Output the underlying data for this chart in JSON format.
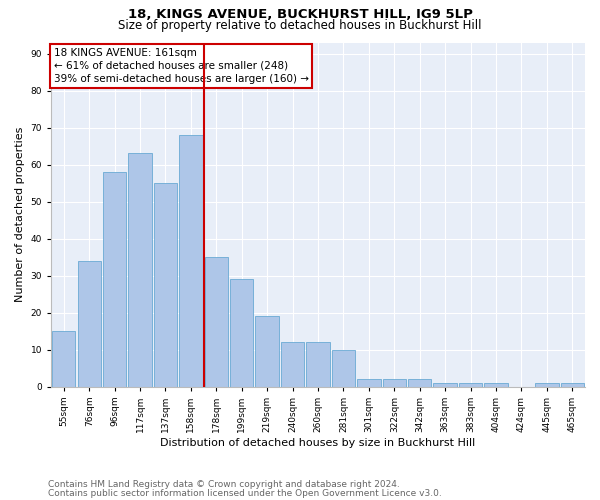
{
  "title1": "18, KINGS AVENUE, BUCKHURST HILL, IG9 5LP",
  "title2": "Size of property relative to detached houses in Buckhurst Hill",
  "xlabel": "Distribution of detached houses by size in Buckhurst Hill",
  "ylabel": "Number of detached properties",
  "footnote1": "Contains HM Land Registry data © Crown copyright and database right 2024.",
  "footnote2": "Contains public sector information licensed under the Open Government Licence v3.0.",
  "bar_labels": [
    "55sqm",
    "76sqm",
    "96sqm",
    "117sqm",
    "137sqm",
    "158sqm",
    "178sqm",
    "199sqm",
    "219sqm",
    "240sqm",
    "260sqm",
    "281sqm",
    "301sqm",
    "322sqm",
    "342sqm",
    "363sqm",
    "383sqm",
    "404sqm",
    "424sqm",
    "445sqm",
    "465sqm"
  ],
  "bar_values": [
    15,
    34,
    58,
    63,
    55,
    68,
    35,
    29,
    19,
    12,
    12,
    10,
    2,
    2,
    2,
    1,
    1,
    1,
    0,
    1,
    1
  ],
  "bar_color": "#aec6e8",
  "bar_edge_color": "#6aaad4",
  "vline_x": 5.5,
  "vline_color": "#cc0000",
  "annotation_line1": "18 KINGS AVENUE: 161sqm",
  "annotation_line2": "← 61% of detached houses are smaller (248)",
  "annotation_line3": "39% of semi-detached houses are larger (160) →",
  "annotation_box_color": "#ffffff",
  "annotation_box_edge": "#cc0000",
  "ylim": [
    0,
    93
  ],
  "yticks": [
    0,
    10,
    20,
    30,
    40,
    50,
    60,
    70,
    80,
    90
  ],
  "plot_bg_color": "#e8eef8",
  "title1_fontsize": 9.5,
  "title2_fontsize": 8.5,
  "footnote_fontsize": 6.5,
  "tick_fontsize": 6.5,
  "label_fontsize": 8,
  "annotation_fontsize": 7.5
}
